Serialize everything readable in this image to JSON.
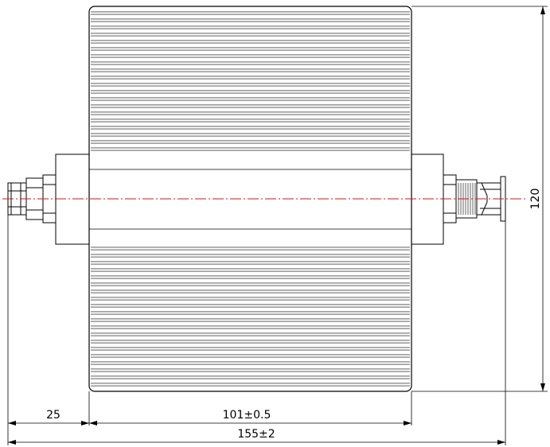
{
  "drawing": {
    "dimensions": {
      "height": "120",
      "connector_length": "25",
      "body_length": "101±0.5",
      "overall_length": "155±2"
    },
    "colors": {
      "outline": "#000000",
      "centerline": "#d0151b",
      "background": "#ffffff"
    },
    "components": {
      "heatsink_fin_count": 40,
      "left_connector": "BNC female",
      "right_connector": "BNC male"
    }
  }
}
